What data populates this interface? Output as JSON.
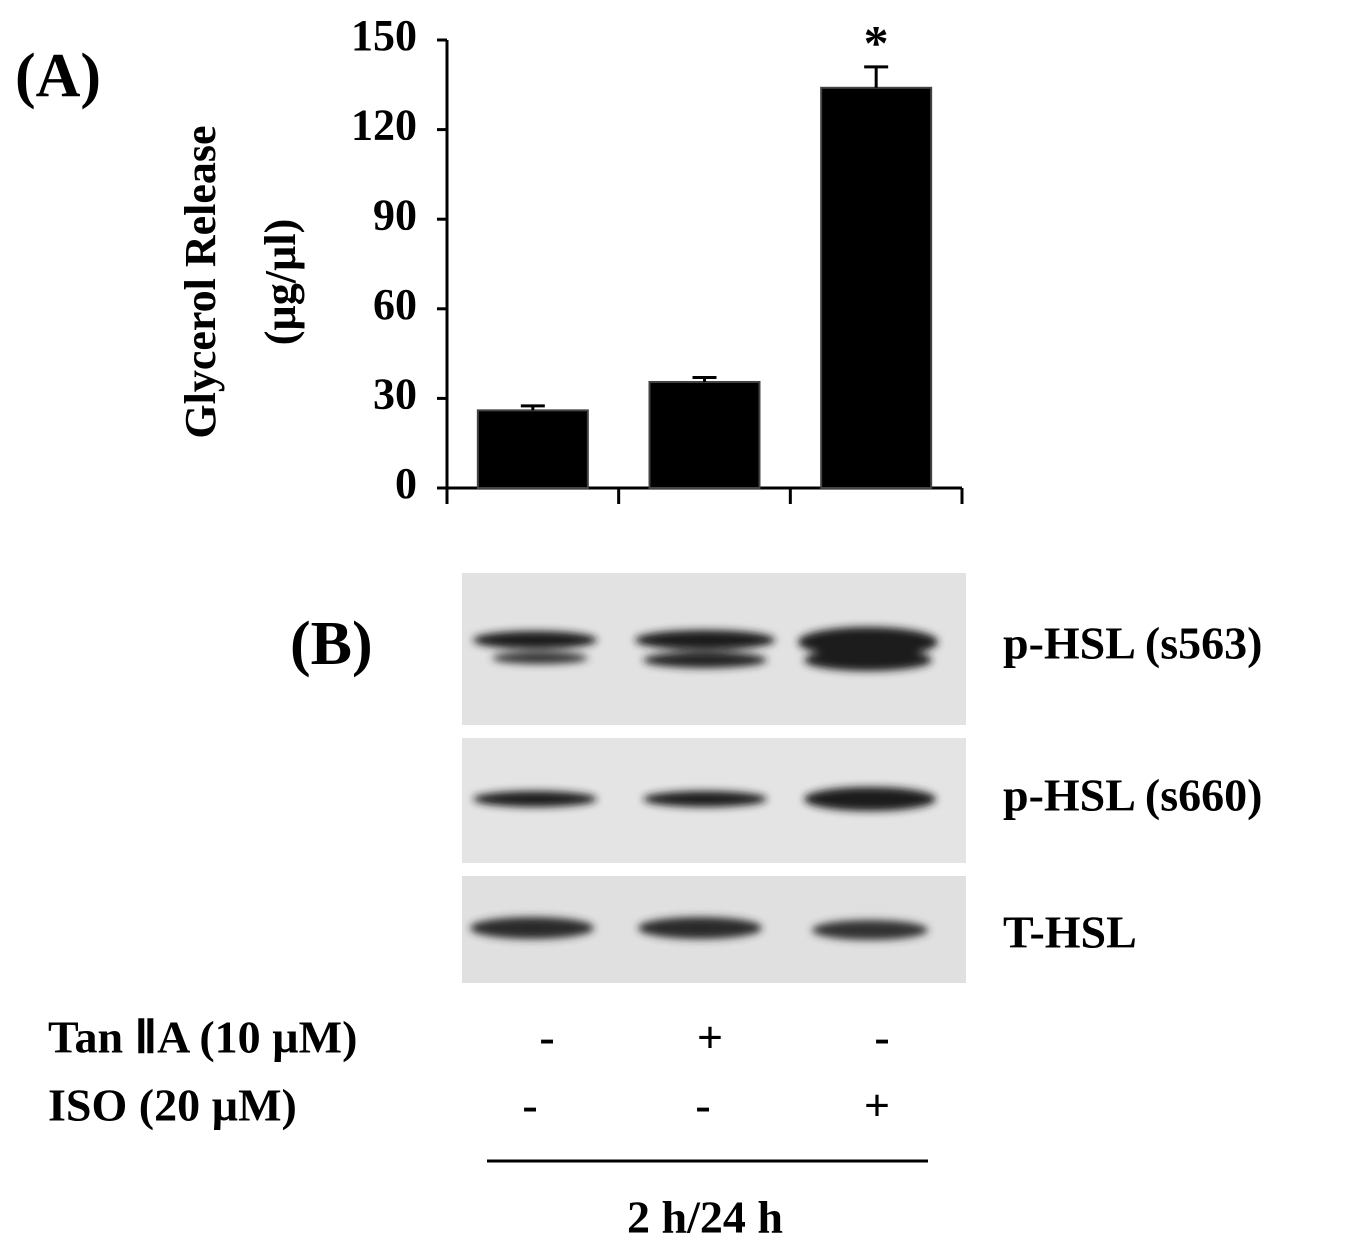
{
  "chart_data": {
    "type": "bar",
    "panel_label": "(A)",
    "y_label": [
      "Glycerol Release",
      "(µg/µl)"
    ],
    "categories": [
      null,
      null,
      null
    ],
    "values": [
      26,
      35.5,
      134
    ],
    "errors": [
      1.5,
      1.5,
      7
    ],
    "color": "#000000",
    "ylim": [
      0,
      150
    ],
    "yticks": [
      0,
      30,
      60,
      90,
      120,
      150
    ],
    "annotations": [
      {
        "category": 2,
        "text": "*"
      }
    ]
  },
  "panel_b": {
    "panel_label": "(B)",
    "blots": [
      "p-HSL (s563)",
      "p-HSL (s660)",
      "T-HSL"
    ],
    "treatments": [
      {
        "label": "Tan ⅡA (10 µM)",
        "signs": [
          "-",
          "+",
          "-"
        ]
      },
      {
        "label": "ISO (20 µM)",
        "signs": [
          "-",
          "-",
          "+"
        ]
      }
    ],
    "time": "2 h/24 h"
  }
}
